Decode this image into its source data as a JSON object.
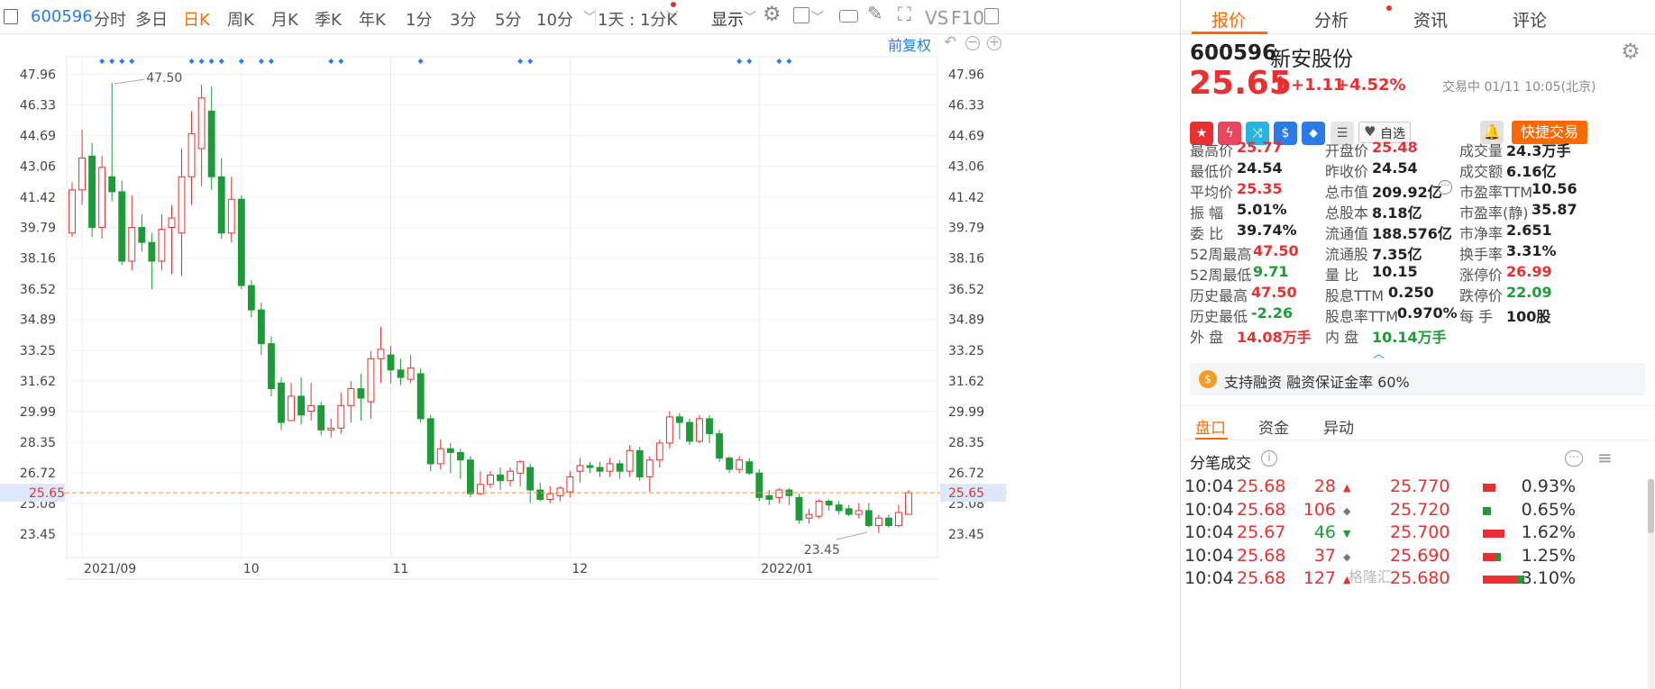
{
  "toolbar": {
    "stock_code": "600596",
    "tabs": [
      "分时",
      "多日",
      "日K",
      "周K",
      "月K",
      "季K",
      "年K",
      "1分",
      "3分",
      "5分",
      "10分"
    ],
    "active_tab": "日K",
    "interval_select": "1天 : 1分K",
    "display_label": "显示",
    "vs": "VS",
    "f10": "F10"
  },
  "chart_header": {
    "fq_label": "前复权"
  },
  "chart_data": {
    "type": "candlestick",
    "y_ticks": [
      "47.96",
      "46.33",
      "44.69",
      "43.06",
      "41.42",
      "39.79",
      "38.16",
      "36.52",
      "34.89",
      "33.25",
      "31.62",
      "29.99",
      "28.35",
      "26.72",
      "25.08",
      "23.45"
    ],
    "ylim": [
      22.2,
      48.9
    ],
    "x_labels": [
      {
        "label": "2021/09",
        "i": 1
      },
      {
        "label": "10",
        "i": 17
      },
      {
        "label": "11",
        "i": 32
      },
      {
        "label": "12",
        "i": 50
      },
      {
        "label": "2022/01",
        "i": 69
      }
    ],
    "markers": [
      3,
      4,
      5,
      6,
      12,
      13,
      14,
      15,
      17,
      19,
      20,
      26,
      27,
      35,
      45,
      46,
      67,
      68,
      71,
      72
    ],
    "current_price": "25.65",
    "high_note": "47.50",
    "low_note": "23.45",
    "candles": [
      [
        39.5,
        41.8,
        39.3,
        42.2
      ],
      [
        41.8,
        43.5,
        41.0,
        45.0
      ],
      [
        43.6,
        39.8,
        39.3,
        44.3
      ],
      [
        39.8,
        43.0,
        39.2,
        43.6
      ],
      [
        42.5,
        41.7,
        41.2,
        47.5
      ],
      [
        41.7,
        38.0,
        37.8,
        42.3
      ],
      [
        38.0,
        39.8,
        37.5,
        41.5
      ],
      [
        39.8,
        39.0,
        38.5,
        40.5
      ],
      [
        39.0,
        38.0,
        36.5,
        39.5
      ],
      [
        38.0,
        39.7,
        37.5,
        40.5
      ],
      [
        39.8,
        40.3,
        37.3,
        41.0
      ],
      [
        39.5,
        42.5,
        37.2,
        44.0
      ],
      [
        42.5,
        44.8,
        41.0,
        46.0
      ],
      [
        44.0,
        46.7,
        42.0,
        47.4
      ],
      [
        46.0,
        42.5,
        41.8,
        47.3
      ],
      [
        42.5,
        39.5,
        39.2,
        43.5
      ],
      [
        39.5,
        41.3,
        39.0,
        42.5
      ],
      [
        41.3,
        36.7,
        36.5,
        41.5
      ],
      [
        36.7,
        35.4,
        35.0,
        37.0
      ],
      [
        35.4,
        33.6,
        33.0,
        35.8
      ],
      [
        33.6,
        31.2,
        30.8,
        34.0
      ],
      [
        31.5,
        29.4,
        29.0,
        31.8
      ],
      [
        29.5,
        30.8,
        29.5,
        31.5
      ],
      [
        30.8,
        29.8,
        29.3,
        31.8
      ],
      [
        30.0,
        30.3,
        29.5,
        31.5
      ],
      [
        30.3,
        29.0,
        28.7,
        30.5
      ],
      [
        29.0,
        29.1,
        28.6,
        29.6
      ],
      [
        29.1,
        30.3,
        28.8,
        31.0
      ],
      [
        30.3,
        31.2,
        29.4,
        31.6
      ],
      [
        31.2,
        30.7,
        29.5,
        32.0
      ],
      [
        30.5,
        32.8,
        29.6,
        33.2
      ],
      [
        32.8,
        33.3,
        31.5,
        34.5
      ],
      [
        33.0,
        32.2,
        31.5,
        33.5
      ],
      [
        32.2,
        31.8,
        31.4,
        32.8
      ],
      [
        31.7,
        32.3,
        31.5,
        33.0
      ],
      [
        32.0,
        29.6,
        29.4,
        32.3
      ],
      [
        29.6,
        27.2,
        26.8,
        29.8
      ],
      [
        27.2,
        28.0,
        26.9,
        28.5
      ],
      [
        28.0,
        27.8,
        26.7,
        28.3
      ],
      [
        27.8,
        27.4,
        26.4,
        28.0
      ],
      [
        27.4,
        25.6,
        25.4,
        27.6
      ],
      [
        25.6,
        26.1,
        25.5,
        26.8
      ],
      [
        26.1,
        26.6,
        25.9,
        26.8
      ],
      [
        26.6,
        26.3,
        25.8,
        27.0
      ],
      [
        26.3,
        26.8,
        26.0,
        27.0
      ],
      [
        26.7,
        27.3,
        26.0,
        27.4
      ],
      [
        27.0,
        25.8,
        25.1,
        27.2
      ],
      [
        25.8,
        25.3,
        25.2,
        26.2
      ],
      [
        25.3,
        25.6,
        25.1,
        26.0
      ],
      [
        25.5,
        25.9,
        25.2,
        26.0
      ],
      [
        25.7,
        26.5,
        25.4,
        26.8
      ],
      [
        26.8,
        27.1,
        26.2,
        27.5
      ],
      [
        27.1,
        27.0,
        26.7,
        27.3
      ],
      [
        27.0,
        26.8,
        26.5,
        27.3
      ],
      [
        26.8,
        27.2,
        26.5,
        27.5
      ],
      [
        27.2,
        26.8,
        26.4,
        27.4
      ],
      [
        26.8,
        27.9,
        26.5,
        28.2
      ],
      [
        27.9,
        26.5,
        26.3,
        28.1
      ],
      [
        26.5,
        27.4,
        25.7,
        27.6
      ],
      [
        27.4,
        28.3,
        27.0,
        28.5
      ],
      [
        28.3,
        29.7,
        28.0,
        30.0
      ],
      [
        29.7,
        29.4,
        28.5,
        29.9
      ],
      [
        29.4,
        28.4,
        28.2,
        29.6
      ],
      [
        28.4,
        29.6,
        28.3,
        29.8
      ],
      [
        29.6,
        28.8,
        28.3,
        29.8
      ],
      [
        28.8,
        27.5,
        27.3,
        29.0
      ],
      [
        27.5,
        26.9,
        26.7,
        27.6
      ],
      [
        26.9,
        27.4,
        26.7,
        27.6
      ],
      [
        27.3,
        26.7,
        26.6,
        27.5
      ],
      [
        26.7,
        25.4,
        25.2,
        26.9
      ],
      [
        25.5,
        25.3,
        25.0,
        25.8
      ],
      [
        25.4,
        25.8,
        25.1,
        25.9
      ],
      [
        25.8,
        25.5,
        25.0,
        25.9
      ],
      [
        25.4,
        24.2,
        24.0,
        25.6
      ],
      [
        24.3,
        24.5,
        24.0,
        24.8
      ],
      [
        24.4,
        25.2,
        24.3,
        25.3
      ],
      [
        25.2,
        25.0,
        24.7,
        25.3
      ],
      [
        25.0,
        24.7,
        24.5,
        25.2
      ],
      [
        24.8,
        24.5,
        24.4,
        25.0
      ],
      [
        24.5,
        24.7,
        24.3,
        25.1
      ],
      [
        24.7,
        23.9,
        23.8,
        25.1
      ],
      [
        23.9,
        24.3,
        23.5,
        24.5
      ],
      [
        24.3,
        23.9,
        23.8,
        24.5
      ],
      [
        23.9,
        24.6,
        23.8,
        25.0
      ],
      [
        24.5,
        25.65,
        24.5,
        25.8
      ]
    ]
  },
  "header": {
    "code": "600596",
    "name": "新安股份",
    "price": "25.65",
    "change": "+1.11",
    "pct": "+4.52%",
    "status": "交易中 01/11 10:05(北京)",
    "zixuan": "自选",
    "quick_trade": "快捷交易",
    "price_color": "#e93030"
  },
  "tabs": [
    "报价",
    "分析",
    "资讯",
    "评论"
  ],
  "stats": [
    [
      {
        "label": "最高价",
        "value": "25.77",
        "c": "red"
      },
      {
        "label": "开盘价",
        "value": "25.48",
        "c": "red"
      },
      {
        "label": "成交量",
        "value": "24.3万手",
        "c": "dark"
      }
    ],
    [
      {
        "label": "最低价",
        "value": "24.54",
        "c": "dark"
      },
      {
        "label": "昨收价",
        "value": "24.54",
        "c": "dark"
      },
      {
        "label": "成交额",
        "value": "6.16亿",
        "c": "dark"
      }
    ],
    [
      {
        "label": "平均价",
        "value": "25.35",
        "c": "red"
      },
      {
        "label": "总市值",
        "value": "209.92亿",
        "c": "dark"
      },
      {
        "label": "市盈率TTM",
        "value": "10.56",
        "c": "dark"
      }
    ],
    [
      {
        "label": "振 幅",
        "value": "5.01%",
        "c": "dark"
      },
      {
        "label": "总股本",
        "value": "8.18亿",
        "c": "dark"
      },
      {
        "label": "市盈率(静)",
        "value": "35.87",
        "c": "dark"
      }
    ],
    [
      {
        "label": "委 比",
        "value": "39.74%",
        "c": "dark"
      },
      {
        "label": "流通值",
        "value": "188.576亿",
        "c": "dark"
      },
      {
        "label": "市净率",
        "value": "2.651",
        "c": "dark"
      }
    ],
    [
      {
        "label": "52周最高",
        "value": "47.50",
        "c": "red"
      },
      {
        "label": "流通股",
        "value": "7.35亿",
        "c": "dark"
      },
      {
        "label": "换手率",
        "value": "3.31%",
        "c": "dark"
      }
    ],
    [
      {
        "label": "52周最低",
        "value": "9.71",
        "c": "green"
      },
      {
        "label": "量 比",
        "value": "10.15",
        "c": "dark"
      },
      {
        "label": "涨停价",
        "value": "26.99",
        "c": "red"
      }
    ],
    [
      {
        "label": "历史最高",
        "value": "47.50",
        "c": "red"
      },
      {
        "label": "股息TTM",
        "value": "0.250",
        "c": "dark"
      },
      {
        "label": "跌停价",
        "value": "22.09",
        "c": "green"
      }
    ],
    [
      {
        "label": "历史最低",
        "value": "-2.26",
        "c": "green"
      },
      {
        "label": "股息率TTM",
        "value": "0.970%",
        "c": "dark"
      },
      {
        "label": "每 手",
        "value": "100股",
        "c": "dark"
      }
    ],
    [
      {
        "label": "外 盘",
        "value": "14.08万手",
        "c": "red"
      },
      {
        "label": "内 盘",
        "value": "10.14万手",
        "c": "green"
      }
    ]
  ],
  "margin": {
    "text": "支持融资 融资保证金率 60%"
  },
  "subtabs": [
    "盘口",
    "资金",
    "异动"
  ],
  "trades_title": "分笔成交",
  "trades": [
    {
      "time": "10:04",
      "price": "25.68",
      "vol": "28",
      "dir": "up",
      "p2": "25.770",
      "pct": "0.93%",
      "bar": [
        0.3,
        0
      ]
    },
    {
      "time": "10:04",
      "price": "25.68",
      "vol": "106",
      "dir": "flat",
      "p2": "25.720",
      "pct": "0.65%",
      "bar": [
        0,
        0.18
      ]
    },
    {
      "time": "10:04",
      "price": "25.67",
      "vol": "46",
      "dir": "down",
      "p2": "25.700",
      "pct": "1.62%",
      "bar": [
        0.5,
        0
      ]
    },
    {
      "time": "10:04",
      "price": "25.68",
      "vol": "37",
      "dir": "flat",
      "p2": "25.690",
      "pct": "1.25%",
      "bar": [
        0.4,
        0.2
      ]
    },
    {
      "time": "10:04",
      "price": "25.68",
      "vol": "127",
      "dir": "up",
      "p2": "25.680",
      "pct": "3.10%",
      "bar": [
        0.95,
        0.3
      ]
    }
  ],
  "watermark": "格隆汇"
}
